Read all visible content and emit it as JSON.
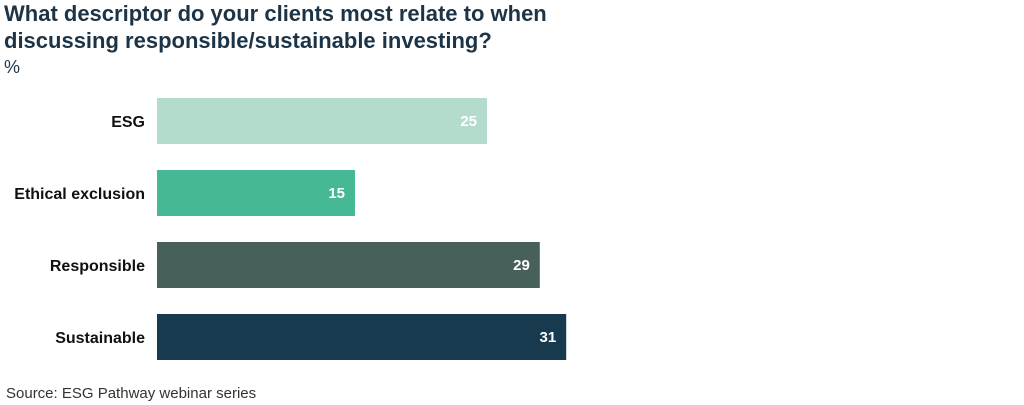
{
  "chart_data": {
    "type": "bar",
    "orientation": "horizontal",
    "title": "What descriptor do your clients most relate to when discussing responsible/sustainable investing?",
    "unit": "%",
    "categories": [
      "ESG",
      "Ethical exclusion",
      "Responsible",
      "Sustainable"
    ],
    "values": [
      25,
      15,
      29,
      31
    ],
    "colors": [
      "#b3dccd",
      "#46b895",
      "#48605b",
      "#173a4f"
    ],
    "xlim": [
      0,
      31
    ],
    "grid": false,
    "legend": "none",
    "data_labels": true
  },
  "source": "Source: ESG Pathway webinar series"
}
